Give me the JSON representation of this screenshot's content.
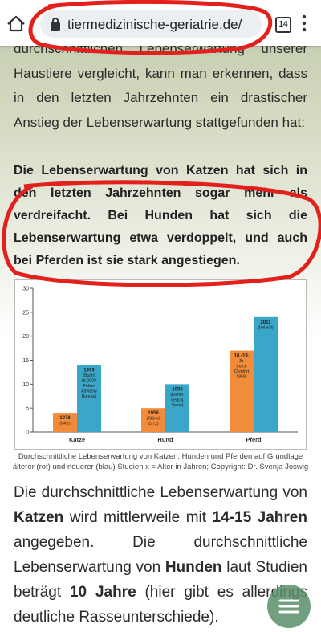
{
  "browser": {
    "url": "tiermedizinische-geriatrie.de/",
    "tab_count": "14"
  },
  "article": {
    "intro": "durchschnittlichen Lebenserwartung unserer Haustiere vergleicht, kann man erkennen, dass in den letzten Jahrzehnten ein drastischer Anstieg der Lebenserwartung stattgefunden hat:",
    "highlight": "Die Lebenserwartung von Katzen hat sich in den letzten Jahrzehnten sogar mehr als verdreifacht. Bei Hunden hat sich die Lebenserwartung etwa verdoppelt, und auch bei Pferden ist sie stark angestiegen.",
    "figure": {
      "chart_data": {
        "type": "bar",
        "categories": [
          "Katze",
          "Hund",
          "Pferd"
        ],
        "series": [
          {
            "color": "#f28c3a",
            "values": [
              4,
              5,
              17
            ],
            "labels": [
              [
                "1978",
                "(Isler)"
              ],
              [
                "1958",
                "(Stünzi",
                "1972)"
              ],
              [
                "18.-19.",
                "Jh.",
                "(nach",
                "Comfort",
                "1958)"
              ]
            ]
          },
          {
            "color": "#3aa6c8",
            "values": [
              14,
              10,
              24
            ],
            "labels": [
              [
                "1993",
                "(Bush)",
                "(& 2008",
                "Feline",
                "Advisory",
                "Bureau)"
              ],
              [
                "1996",
                "(Eichel-",
                "berg &",
                "Seine)"
              ],
              [
                "2011",
                "(Ireland)"
              ]
            ]
          }
        ],
        "ylim": [
          0,
          30
        ],
        "yticks": [
          0,
          5,
          10,
          15,
          20,
          25,
          30
        ],
        "grid": false
      },
      "caption": "Durchschnittliche Lebenserwartung von Katzen, Hunden und Pferden auf Grundlage älterer (rot) und neuerer (blau) Studien x = Alter in Jahren; Copyright: Dr. Svenja Joswig"
    },
    "paragraph": [
      {
        "text": "Die durchschnittliche Lebenserwartung von ",
        "bold": false
      },
      {
        "text": "Katzen",
        "bold": true
      },
      {
        "text": " wird mittlerweile mit ",
        "bold": false
      },
      {
        "text": "14-15 Jahren",
        "bold": true
      },
      {
        "text": " angegeben. Die durchschnittliche Lebenserwartung von ",
        "bold": false
      },
      {
        "text": "Hunden",
        "bold": true
      },
      {
        "text": " laut Studien beträgt ",
        "bold": false
      },
      {
        "text": "10 Jahre",
        "bold": true
      },
      {
        "text": " (hier gibt es allerdings deutliche Rasseunterschiede).",
        "bold": false
      }
    ]
  }
}
